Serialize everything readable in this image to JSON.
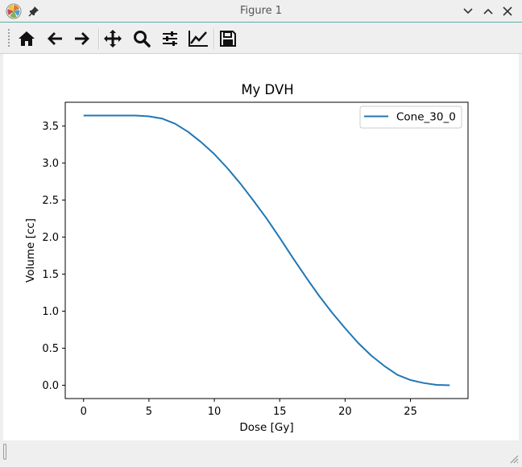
{
  "window": {
    "title": "Figure 1"
  },
  "titlebar_icons": {
    "app": "matplotlib-icon",
    "pin": "pin-icon",
    "minimize": "chevron-down-icon",
    "maximize": "chevron-up-icon",
    "close": "close-icon"
  },
  "toolbar": {
    "tools": [
      {
        "name": "home",
        "icon": "home-icon"
      },
      {
        "name": "back",
        "icon": "arrow-left-icon"
      },
      {
        "name": "forward",
        "icon": "arrow-right-icon"
      },
      {
        "name": "pan",
        "icon": "move-icon"
      },
      {
        "name": "zoom",
        "icon": "magnifier-icon"
      },
      {
        "name": "subplots",
        "icon": "sliders-icon"
      },
      {
        "name": "customize",
        "icon": "line-chart-icon"
      },
      {
        "name": "save",
        "icon": "floppy-icon"
      }
    ]
  },
  "colors": {
    "series": "#1f77b4",
    "titlebar_accent": "#5fb0a6"
  },
  "chart_data": {
    "type": "line",
    "title": "My DVH",
    "xlabel": "Dose [Gy]",
    "ylabel": "Volume [cc]",
    "xlim": [
      -1.4,
      29.4
    ],
    "ylim": [
      -0.18,
      3.82
    ],
    "xticks": [
      0,
      5,
      10,
      15,
      20,
      25
    ],
    "xtick_labels": [
      "0",
      "5",
      "10",
      "15",
      "20",
      "25"
    ],
    "yticks": [
      0.0,
      0.5,
      1.0,
      1.5,
      2.0,
      2.5,
      3.0,
      3.5
    ],
    "ytick_labels": [
      "0.0",
      "0.5",
      "1.0",
      "1.5",
      "2.0",
      "2.5",
      "3.0",
      "3.5"
    ],
    "grid": false,
    "legend_position": "top-right",
    "series": [
      {
        "name": "Cone_30_0",
        "x": [
          0,
          2,
          4,
          5,
          6,
          7,
          8,
          9,
          10,
          11,
          12,
          13,
          14,
          15,
          16,
          17,
          18,
          19,
          20,
          21,
          22,
          23,
          24,
          25,
          26,
          27,
          28
        ],
        "y": [
          3.64,
          3.64,
          3.64,
          3.63,
          3.6,
          3.53,
          3.42,
          3.28,
          3.12,
          2.93,
          2.72,
          2.49,
          2.25,
          1.99,
          1.72,
          1.46,
          1.21,
          0.98,
          0.77,
          0.57,
          0.4,
          0.26,
          0.14,
          0.07,
          0.03,
          0.005,
          0.0
        ]
      }
    ]
  }
}
